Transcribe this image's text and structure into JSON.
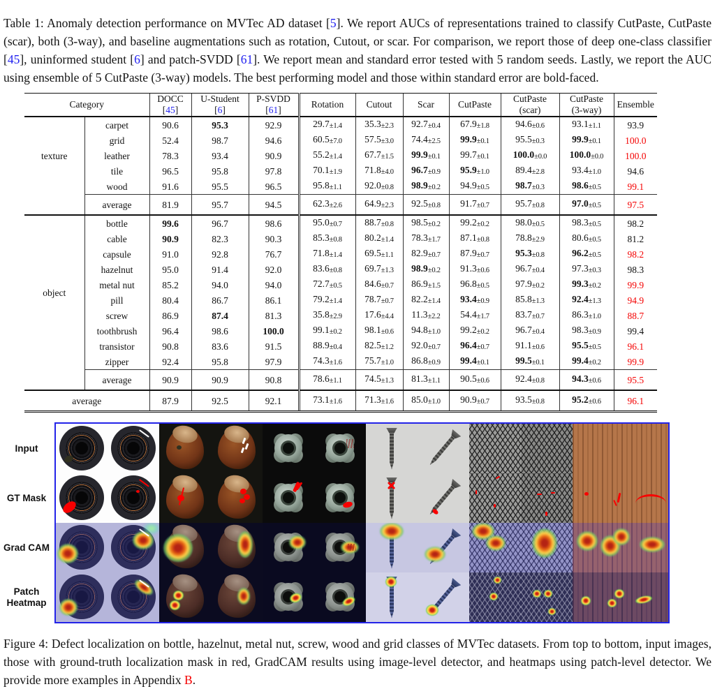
{
  "colors": {
    "citation_blue": "#2222f0",
    "highlight_red": "#f40000",
    "figure_border_blue": "#2323e8"
  },
  "table_caption": {
    "segments": [
      {
        "t": "Table 1: Anomaly detection performance on MVTec AD dataset ["
      },
      {
        "t": "5",
        "c": "blue"
      },
      {
        "t": "]. We report AUCs of representations trained to classify CutPaste, CutPaste (scar), both (3-way), and baseline augmentations such as rotation, Cutout, or scar. For comparison, we report those of deep one-class classifier ["
      },
      {
        "t": "45",
        "c": "blue"
      },
      {
        "t": "], uninformed student ["
      },
      {
        "t": "6",
        "c": "blue"
      },
      {
        "t": "] and patch-SVDD ["
      },
      {
        "t": "61",
        "c": "blue"
      },
      {
        "t": "]. We report mean and standard error tested with 5 random seeds. Lastly, we report the AUC using ensemble of 5 CutPaste (3-way) models. The best performing model and those within standard error are bold-faced."
      }
    ]
  },
  "table": {
    "category_label": "Category",
    "columns": [
      {
        "key": "docc",
        "name": "DOCC",
        "cite": "45"
      },
      {
        "key": "u-student",
        "name": "U-Student",
        "cite": "6"
      },
      {
        "key": "p-svdd",
        "name": "P-SVDD",
        "cite": "61"
      },
      {
        "key": "rotation",
        "name": "Rotation"
      },
      {
        "key": "cutout",
        "name": "Cutout"
      },
      {
        "key": "scar",
        "name": "Scar"
      },
      {
        "key": "cutpaste",
        "name": "CutPaste"
      },
      {
        "key": "cutpaste-scar",
        "name": "CutPaste",
        "sub": "(scar)"
      },
      {
        "key": "cutpaste-3way",
        "name": "CutPaste",
        "sub": "(3-way)"
      },
      {
        "key": "ensemble",
        "name": "Ensemble"
      }
    ],
    "sections": [
      {
        "label": "texture",
        "rows": [
          {
            "name": "carpet",
            "cells": [
              {
                "v": "90.6"
              },
              {
                "v": "95.3",
                "b": true
              },
              {
                "v": "92.9"
              },
              {
                "v": "29.7",
                "pm": "±1.4"
              },
              {
                "v": "35.3",
                "pm": "±2.3"
              },
              {
                "v": "92.7",
                "pm": "±0.4"
              },
              {
                "v": "67.9",
                "pm": "±1.8"
              },
              {
                "v": "94.6",
                "pm": "±0.6"
              },
              {
                "v": "93.1",
                "pm": "±1.1"
              },
              {
                "v": "93.9"
              }
            ]
          },
          {
            "name": "grid",
            "cells": [
              {
                "v": "52.4"
              },
              {
                "v": "98.7"
              },
              {
                "v": "94.6"
              },
              {
                "v": "60.5",
                "pm": "±7.0"
              },
              {
                "v": "57.5",
                "pm": "±3.0"
              },
              {
                "v": "74.4",
                "pm": "±2.5"
              },
              {
                "v": "99.9",
                "pm": "±0.1",
                "b": true
              },
              {
                "v": "95.5",
                "pm": "±0.3"
              },
              {
                "v": "99.9",
                "pm": "±0.1",
                "b": true
              },
              {
                "v": "100.0",
                "red": true
              }
            ]
          },
          {
            "name": "leather",
            "cells": [
              {
                "v": "78.3"
              },
              {
                "v": "93.4"
              },
              {
                "v": "90.9"
              },
              {
                "v": "55.2",
                "pm": "±1.4"
              },
              {
                "v": "67.7",
                "pm": "±1.5"
              },
              {
                "v": "99.9",
                "pm": "±0.1",
                "b": true
              },
              {
                "v": "99.7",
                "pm": "±0.1"
              },
              {
                "v": "100.0",
                "pm": "±0.0",
                "b": true
              },
              {
                "v": "100.0",
                "pm": "±0.0",
                "b": true
              },
              {
                "v": "100.0",
                "red": true
              }
            ]
          },
          {
            "name": "tile",
            "cells": [
              {
                "v": "96.5"
              },
              {
                "v": "95.8"
              },
              {
                "v": "97.8"
              },
              {
                "v": "70.1",
                "pm": "±1.9"
              },
              {
                "v": "71.8",
                "pm": "±4.0"
              },
              {
                "v": "96.7",
                "pm": "±0.9",
                "b": true
              },
              {
                "v": "95.9",
                "pm": "±1.0",
                "b": true
              },
              {
                "v": "89.4",
                "pm": "±2.8"
              },
              {
                "v": "93.4",
                "pm": "±1.0"
              },
              {
                "v": "94.6"
              }
            ]
          },
          {
            "name": "wood",
            "cells": [
              {
                "v": "91.6"
              },
              {
                "v": "95.5"
              },
              {
                "v": "96.5"
              },
              {
                "v": "95.8",
                "pm": "±1.1"
              },
              {
                "v": "92.0",
                "pm": "±0.8"
              },
              {
                "v": "98.9",
                "pm": "±0.2",
                "b": true
              },
              {
                "v": "94.9",
                "pm": "±0.5"
              },
              {
                "v": "98.7",
                "pm": "±0.3",
                "b": true
              },
              {
                "v": "98.6",
                "pm": "±0.5",
                "b": true
              },
              {
                "v": "99.1",
                "red": true
              }
            ]
          }
        ],
        "average": {
          "name": "average",
          "cells": [
            {
              "v": "81.9"
            },
            {
              "v": "95.7"
            },
            {
              "v": "94.5"
            },
            {
              "v": "62.3",
              "pm": "±2.6"
            },
            {
              "v": "64.9",
              "pm": "±2.3"
            },
            {
              "v": "92.5",
              "pm": "±0.8"
            },
            {
              "v": "91.7",
              "pm": "±0.7"
            },
            {
              "v": "95.7",
              "pm": "±0.8"
            },
            {
              "v": "97.0",
              "pm": "±0.5",
              "b": true
            },
            {
              "v": "97.5",
              "red": true
            }
          ]
        }
      },
      {
        "label": "object",
        "rows": [
          {
            "name": "bottle",
            "cells": [
              {
                "v": "99.6",
                "b": true
              },
              {
                "v": "96.7"
              },
              {
                "v": "98.6"
              },
              {
                "v": "95.0",
                "pm": "±0.7"
              },
              {
                "v": "88.7",
                "pm": "±0.8"
              },
              {
                "v": "98.5",
                "pm": "±0.2"
              },
              {
                "v": "99.2",
                "pm": "±0.2"
              },
              {
                "v": "98.0",
                "pm": "±0.5"
              },
              {
                "v": "98.3",
                "pm": "±0.5"
              },
              {
                "v": "98.2"
              }
            ]
          },
          {
            "name": "cable",
            "cells": [
              {
                "v": "90.9",
                "b": true
              },
              {
                "v": "82.3"
              },
              {
                "v": "90.3"
              },
              {
                "v": "85.3",
                "pm": "±0.8"
              },
              {
                "v": "80.2",
                "pm": "±1.4"
              },
              {
                "v": "78.3",
                "pm": "±1.7"
              },
              {
                "v": "87.1",
                "pm": "±0.8"
              },
              {
                "v": "78.8",
                "pm": "±2.9"
              },
              {
                "v": "80.6",
                "pm": "±0.5"
              },
              {
                "v": "81.2"
              }
            ]
          },
          {
            "name": "capsule",
            "cells": [
              {
                "v": "91.0"
              },
              {
                "v": "92.8"
              },
              {
                "v": "76.7"
              },
              {
                "v": "71.8",
                "pm": "±1.4"
              },
              {
                "v": "69.5",
                "pm": "±1.1"
              },
              {
                "v": "82.9",
                "pm": "±0.7"
              },
              {
                "v": "87.9",
                "pm": "±0.7"
              },
              {
                "v": "95.3",
                "pm": "±0.8",
                "b": true
              },
              {
                "v": "96.2",
                "pm": "±0.5",
                "b": true
              },
              {
                "v": "98.2",
                "red": true
              }
            ]
          },
          {
            "name": "hazelnut",
            "cells": [
              {
                "v": "95.0"
              },
              {
                "v": "91.4"
              },
              {
                "v": "92.0"
              },
              {
                "v": "83.6",
                "pm": "±0.8"
              },
              {
                "v": "69.7",
                "pm": "±1.3"
              },
              {
                "v": "98.9",
                "pm": "±0.2",
                "b": true
              },
              {
                "v": "91.3",
                "pm": "±0.6"
              },
              {
                "v": "96.7",
                "pm": "±0.4"
              },
              {
                "v": "97.3",
                "pm": "±0.3"
              },
              {
                "v": "98.3"
              }
            ]
          },
          {
            "name": "metal nut",
            "cells": [
              {
                "v": "85.2"
              },
              {
                "v": "94.0"
              },
              {
                "v": "94.0"
              },
              {
                "v": "72.7",
                "pm": "±0.5"
              },
              {
                "v": "84.6",
                "pm": "±0.7"
              },
              {
                "v": "86.9",
                "pm": "±1.5"
              },
              {
                "v": "96.8",
                "pm": "±0.5"
              },
              {
                "v": "97.9",
                "pm": "±0.2"
              },
              {
                "v": "99.3",
                "pm": "±0.2",
                "b": true
              },
              {
                "v": "99.9",
                "red": true
              }
            ]
          },
          {
            "name": "pill",
            "cells": [
              {
                "v": "80.4"
              },
              {
                "v": "86.7"
              },
              {
                "v": "86.1"
              },
              {
                "v": "79.2",
                "pm": "±1.4"
              },
              {
                "v": "78.7",
                "pm": "±0.7"
              },
              {
                "v": "82.2",
                "pm": "±1.4"
              },
              {
                "v": "93.4",
                "pm": "±0.9",
                "b": true
              },
              {
                "v": "85.8",
                "pm": "±1.3"
              },
              {
                "v": "92.4",
                "pm": "±1.3",
                "b": true
              },
              {
                "v": "94.9",
                "red": true
              }
            ]
          },
          {
            "name": "screw",
            "cells": [
              {
                "v": "86.9"
              },
              {
                "v": "87.4",
                "b": true
              },
              {
                "v": "81.3"
              },
              {
                "v": "35.8",
                "pm": "±2.9"
              },
              {
                "v": "17.6",
                "pm": "±4.4"
              },
              {
                "v": "11.3",
                "pm": "±2.2"
              },
              {
                "v": "54.4",
                "pm": "±1.7"
              },
              {
                "v": "83.7",
                "pm": "±0.7"
              },
              {
                "v": "86.3",
                "pm": "±1.0"
              },
              {
                "v": "88.7",
                "red": true
              }
            ]
          },
          {
            "name": "toothbrush",
            "cells": [
              {
                "v": "96.4"
              },
              {
                "v": "98.6"
              },
              {
                "v": "100.0",
                "b": true
              },
              {
                "v": "99.1",
                "pm": "±0.2"
              },
              {
                "v": "98.1",
                "pm": "±0.6"
              },
              {
                "v": "94.8",
                "pm": "±1.0"
              },
              {
                "v": "99.2",
                "pm": "±0.2"
              },
              {
                "v": "96.7",
                "pm": "±0.4"
              },
              {
                "v": "98.3",
                "pm": "±0.9"
              },
              {
                "v": "99.4"
              }
            ]
          },
          {
            "name": "transistor",
            "cells": [
              {
                "v": "90.8"
              },
              {
                "v": "83.6"
              },
              {
                "v": "91.5"
              },
              {
                "v": "88.9",
                "pm": "±0.4"
              },
              {
                "v": "82.5",
                "pm": "±1.2"
              },
              {
                "v": "92.0",
                "pm": "±0.7"
              },
              {
                "v": "96.4",
                "pm": "±0.7",
                "b": true
              },
              {
                "v": "91.1",
                "pm": "±0.6"
              },
              {
                "v": "95.5",
                "pm": "±0.5",
                "b": true
              },
              {
                "v": "96.1",
                "red": true
              }
            ]
          },
          {
            "name": "zipper",
            "cells": [
              {
                "v": "92.4"
              },
              {
                "v": "95.8"
              },
              {
                "v": "97.9"
              },
              {
                "v": "74.3",
                "pm": "±1.6"
              },
              {
                "v": "75.7",
                "pm": "±1.0"
              },
              {
                "v": "86.8",
                "pm": "±0.9"
              },
              {
                "v": "99.4",
                "pm": "±0.1",
                "b": true
              },
              {
                "v": "99.5",
                "pm": "±0.1",
                "b": true
              },
              {
                "v": "99.4",
                "pm": "±0.2",
                "b": true
              },
              {
                "v": "99.9",
                "red": true
              }
            ]
          }
        ],
        "average": {
          "name": "average",
          "cells": [
            {
              "v": "90.9"
            },
            {
              "v": "90.9"
            },
            {
              "v": "90.8"
            },
            {
              "v": "78.6",
              "pm": "±1.1"
            },
            {
              "v": "74.5",
              "pm": "±1.3"
            },
            {
              "v": "81.3",
              "pm": "±1.1"
            },
            {
              "v": "90.5",
              "pm": "±0.6"
            },
            {
              "v": "92.4",
              "pm": "±0.8"
            },
            {
              "v": "94.3",
              "pm": "±0.6",
              "b": true
            },
            {
              "v": "95.5",
              "red": true
            }
          ]
        }
      }
    ],
    "footer": {
      "name": "average",
      "cells": [
        {
          "v": "87.9"
        },
        {
          "v": "92.5"
        },
        {
          "v": "92.1"
        },
        {
          "v": "73.1",
          "pm": "±1.6"
        },
        {
          "v": "71.3",
          "pm": "±1.6"
        },
        {
          "v": "85.0",
          "pm": "±1.0"
        },
        {
          "v": "90.9",
          "pm": "±0.7"
        },
        {
          "v": "93.5",
          "pm": "±0.8"
        },
        {
          "v": "95.2",
          "pm": "±0.6",
          "b": true
        },
        {
          "v": "96.1",
          "red": true
        }
      ]
    }
  },
  "figure": {
    "rows": [
      {
        "key": "input",
        "label": "Input"
      },
      {
        "key": "gt",
        "label": "GT Mask"
      },
      {
        "key": "cam",
        "label": "Grad CAM"
      },
      {
        "key": "patch",
        "label": "Patch Heatmap"
      }
    ],
    "columns": [
      "bottle",
      "bottle",
      "hazelnut",
      "hazelnut",
      "metal-nut",
      "metal-nut",
      "screw",
      "screw",
      "grid",
      "grid",
      "wood"
    ]
  },
  "figure_caption": {
    "segments": [
      {
        "t": "Figure 4: Defect localization on bottle, hazelnut, metal nut, screw, wood and grid classes of MVTec datasets. From top to bottom, input images, those with ground-truth localization mask in red, GradCAM results using image-level detector, and heatmaps using patch-level detector. We provide more examples in Appendix "
      },
      {
        "t": "B",
        "c": "red"
      },
      {
        "t": "."
      }
    ]
  }
}
